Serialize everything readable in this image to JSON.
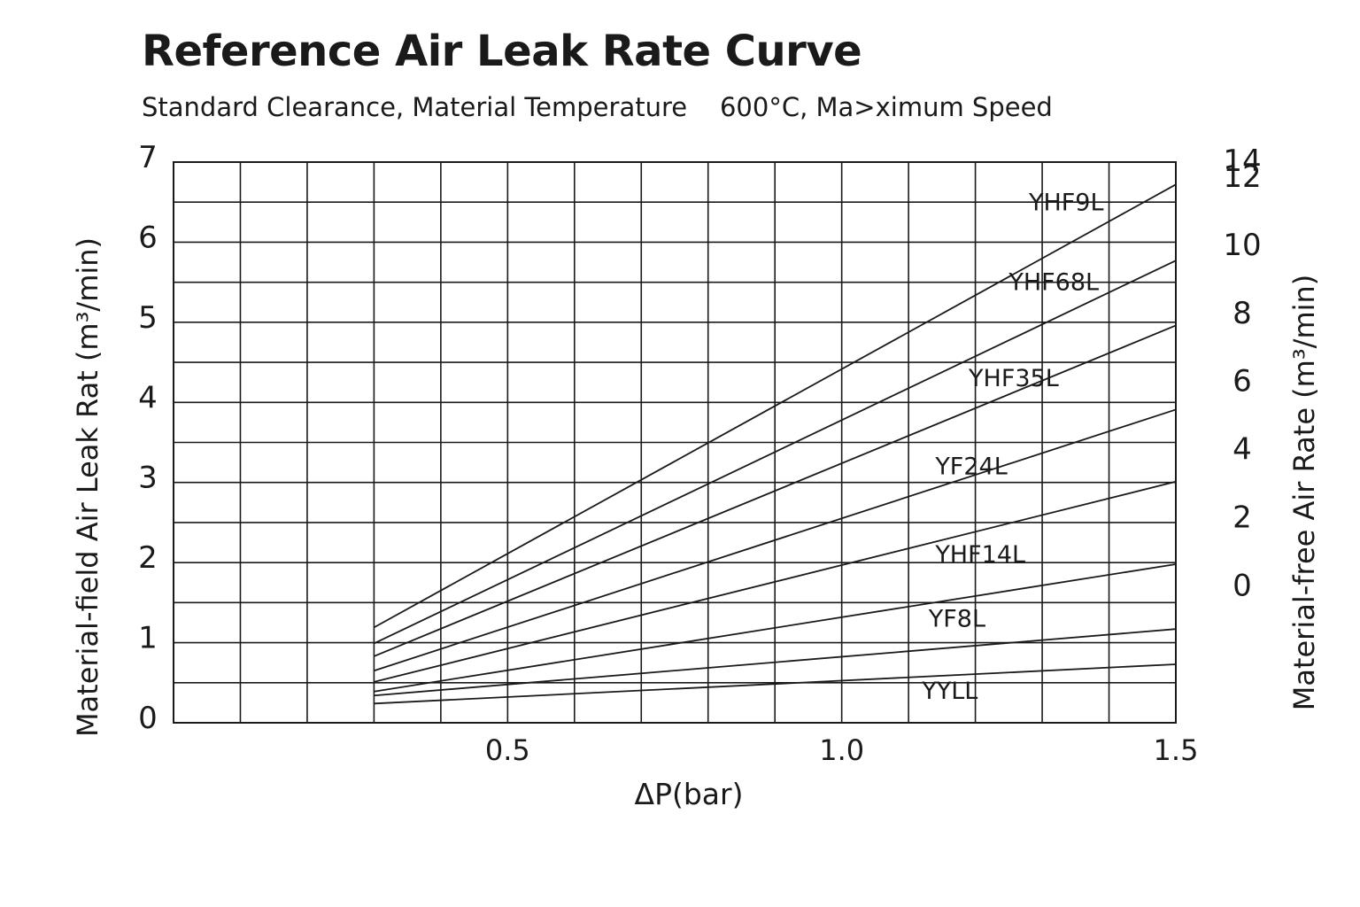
{
  "title": "Reference Air Leak Rate Curve",
  "subtitle": "Standard Clearance, Material Temperature    600°C, Ma>ximum Speed",
  "chart_data": {
    "type": "line",
    "xlabel": "ΔP(bar)",
    "ylabel_left": "Material-field Air Leak Rat (m³/min)",
    "ylabel_right": "Material-free Air Rate (m³/min)",
    "xlim": [
      0,
      1.5
    ],
    "ylim_left": [
      0,
      7
    ],
    "x_ticks": [
      "0.5",
      "1.0",
      "1.5"
    ],
    "x_tick_values": [
      0.5,
      1.0,
      1.5
    ],
    "y_ticks_left": [
      "0",
      "1",
      "2",
      "3",
      "4",
      "5",
      "6",
      "7"
    ],
    "y_tick_values_left": [
      0,
      1,
      2,
      3,
      4,
      5,
      6,
      7
    ],
    "y_ticks_right": [
      "0",
      "2",
      "4",
      "6",
      "8",
      "10",
      "12",
      "14"
    ],
    "y_tick_left_positions_right": [
      1.7,
      2.55,
      3.4,
      4.25,
      5.1,
      5.95,
      6.8,
      7.0
    ],
    "grid": true,
    "grid_x_step": 0.1,
    "grid_y_step": 0.5,
    "series": [
      {
        "name": "YHF9L",
        "x": [
          0.3,
          1.5
        ],
        "y": [
          1.19,
          6.72
        ]
      },
      {
        "name": "YHF68L",
        "x": [
          0.3,
          1.5
        ],
        "y": [
          0.99,
          5.77
        ]
      },
      {
        "name": "YHF35L",
        "x": [
          0.3,
          1.5
        ],
        "y": [
          0.83,
          4.96
        ]
      },
      {
        "name": "YF24L",
        "x": [
          0.3,
          1.5
        ],
        "y": [
          0.65,
          3.91
        ]
      },
      {
        "name": "YHF14L",
        "x": [
          0.3,
          1.5
        ],
        "y": [
          0.51,
          3.01
        ]
      },
      {
        "name": "YF8L",
        "x": [
          0.3,
          1.5
        ],
        "y": [
          0.39,
          1.98
        ]
      },
      {
        "name": "",
        "x": [
          0.3,
          1.5
        ],
        "y": [
          0.34,
          1.17
        ]
      },
      {
        "name": "YYLL",
        "x": [
          0.3,
          1.5
        ],
        "y": [
          0.24,
          0.73
        ]
      }
    ],
    "annotations": [
      {
        "text": "YHF9L",
        "x": 1.28,
        "y": 6.4
      },
      {
        "text": "YHF68L",
        "x": 1.25,
        "y": 5.4
      },
      {
        "text": "YHF35L",
        "x": 1.19,
        "y": 4.2
      },
      {
        "text": "YF24L",
        "x": 1.14,
        "y": 3.1
      },
      {
        "text": "YHF14L",
        "x": 1.14,
        "y": 2.0
      },
      {
        "text": "YF8L",
        "x": 1.13,
        "y": 1.2
      },
      {
        "text": "YYLL",
        "x": 1.12,
        "y": 0.3
      }
    ]
  }
}
